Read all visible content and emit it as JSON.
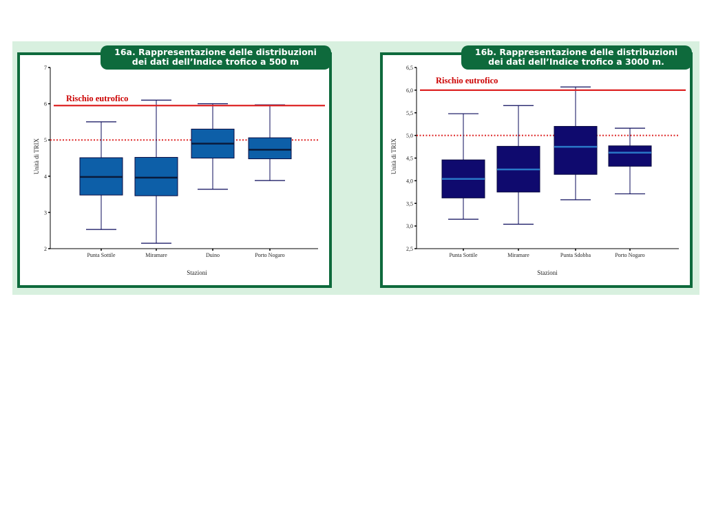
{
  "chart_data": [
    {
      "type": "boxplot",
      "title_line1": "16a. Rappresentazione delle distribuzioni",
      "title_line2": "dei dati dell’Indice trofico a 500 m",
      "xlabel": "Stazioni",
      "ylabel": "Unità di TRIX",
      "ylim": [
        2,
        7
      ],
      "yticks": [
        "2",
        "3",
        "4",
        "5",
        "6",
        "7"
      ],
      "ytick_values": [
        2,
        3,
        4,
        5,
        6,
        7
      ],
      "categories": [
        "Punta Sottile",
        "Miramare",
        "Duino",
        "Porto Nogaro"
      ],
      "boxes": [
        {
          "min": 2.53,
          "q1": 3.48,
          "median": 3.98,
          "q3": 4.51,
          "max": 5.5
        },
        {
          "min": 2.15,
          "q1": 3.46,
          "median": 3.96,
          "q3": 4.52,
          "max": 6.1
        },
        {
          "min": 3.64,
          "q1": 4.5,
          "median": 4.9,
          "q3": 5.3,
          "max": 6.0
        },
        {
          "min": 3.88,
          "q1": 4.48,
          "median": 4.73,
          "q3": 5.06,
          "max": 5.97
        }
      ],
      "risk_label": "Rischio eutrofico",
      "risk_line": 5.95,
      "reference_line": 5.0,
      "box_color": "#0d5fa8",
      "median_color": "#0a1a3a",
      "risk_color": "#dd2222",
      "border_color": "#0e6a3c"
    },
    {
      "type": "boxplot",
      "title_line1": "16b. Rappresentazione delle distribuzioni",
      "title_line2": "dei dati dell’Indice trofico a 3000 m.",
      "xlabel": "Stazioni",
      "ylabel": "Unità di TRIX",
      "ylim": [
        2.5,
        6.5
      ],
      "yticks": [
        "2,5",
        "3,0",
        "3,5",
        "4,0",
        "4,5",
        "5,0",
        "5,5",
        "6,0",
        "6,5"
      ],
      "ytick_values": [
        2.5,
        3.0,
        3.5,
        4.0,
        4.5,
        5.0,
        5.5,
        6.0,
        6.5
      ],
      "categories": [
        "Punta Sottile",
        "Miramare",
        "Punta Sdobba",
        "Porto Nogaro"
      ],
      "boxes": [
        {
          "min": 3.15,
          "q1": 3.62,
          "median": 4.04,
          "q3": 4.46,
          "max": 5.48
        },
        {
          "min": 3.04,
          "q1": 3.75,
          "median": 4.25,
          "q3": 4.76,
          "max": 5.66
        },
        {
          "min": 3.58,
          "q1": 4.14,
          "median": 4.75,
          "q3": 5.2,
          "max": 6.07
        },
        {
          "min": 3.71,
          "q1": 4.32,
          "median": 4.62,
          "q3": 4.77,
          "max": 5.16
        }
      ],
      "risk_label": "Rischio eutrofico",
      "risk_line": 6.0,
      "reference_line": 5.0,
      "box_color": "#0f0a6e",
      "median_color": "#2a78c8",
      "risk_color": "#dd2222",
      "border_color": "#0e6a3c"
    }
  ]
}
